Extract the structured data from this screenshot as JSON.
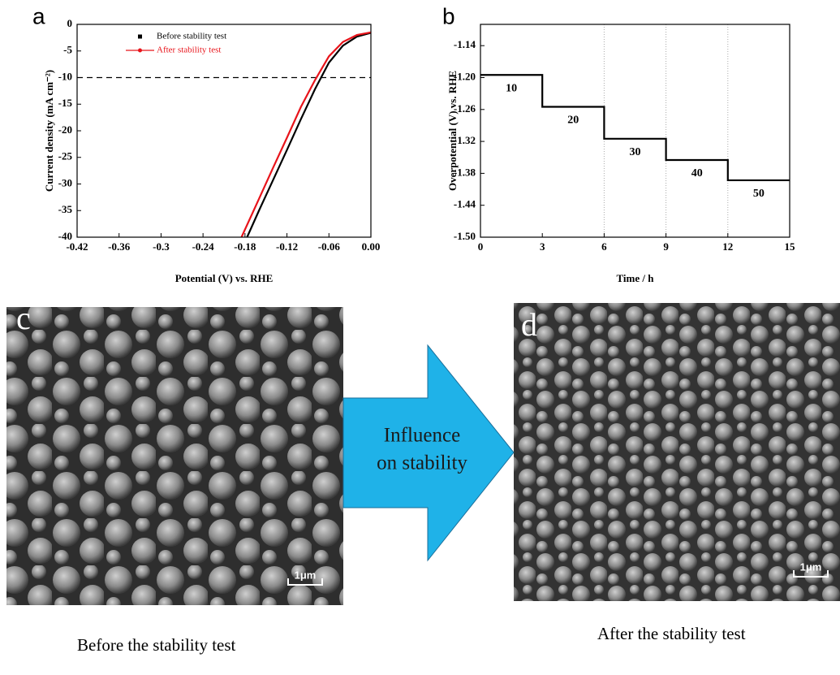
{
  "chart_data": [
    {
      "type": "line",
      "panel": "a",
      "xlabel": "Potential (V) vs. RHE",
      "ylabel": "Current density (mA cm⁻²)",
      "xlim": [
        -0.42,
        0
      ],
      "xticks": [
        -0.42,
        -0.36,
        -0.3,
        -0.24,
        -0.18,
        -0.12,
        -0.06,
        {
          "value": 0,
          "label": "0.00"
        }
      ],
      "ylim": [
        -40,
        0
      ],
      "yticks": [
        0,
        -5,
        -10,
        -15,
        -20,
        -25,
        -30,
        -35,
        -40
      ],
      "hline": -10,
      "legend": "upper left",
      "series": [
        {
          "name": "Before stability test",
          "color": "#000000",
          "x": [
            -0.177,
            -0.16,
            -0.14,
            -0.12,
            -0.1,
            -0.08,
            -0.06,
            -0.04,
            -0.02,
            0
          ],
          "values": [
            -40,
            -35,
            -29.3,
            -23.6,
            -17.8,
            -12.2,
            -7.2,
            -4,
            -2.3,
            -1.6
          ]
        },
        {
          "name": "After stability test",
          "color": "#e8141b",
          "x": [
            -0.185,
            -0.16,
            -0.14,
            -0.12,
            -0.1,
            -0.08,
            -0.06,
            -0.04,
            -0.02,
            0
          ],
          "values": [
            -40,
            -32.8,
            -27,
            -21.3,
            -15.5,
            -10.5,
            -6,
            -3.3,
            -2,
            -1.5
          ]
        }
      ]
    },
    {
      "type": "line",
      "panel": "b",
      "xlabel": "Time / h",
      "ylabel": "Overpotential (V) vs. RHE",
      "xlim": [
        0,
        15
      ],
      "xticks": [
        0,
        3,
        6,
        9,
        12,
        15
      ],
      "ylim": [
        -1.5,
        -1.1
      ],
      "yticks": [
        -1.14,
        {
          "value": -1.2,
          "label": "-1.20"
        },
        -1.26,
        -1.32,
        -1.38,
        -1.44,
        {
          "value": -1.5,
          "label": "-1.50"
        }
      ],
      "vlines": [
        6,
        9,
        12
      ],
      "color": "#000000",
      "x": [
        0,
        3,
        3,
        6,
        6,
        9,
        9,
        12,
        12,
        15
      ],
      "values": [
        -1.195,
        -1.195,
        -1.255,
        -1.255,
        -1.315,
        -1.315,
        -1.355,
        -1.355,
        -1.393,
        -1.393
      ],
      "step_labels": [
        "10",
        "20",
        "30",
        "40",
        "50"
      ]
    }
  ],
  "images": [
    {
      "label": "c",
      "scale_bar": "1μm",
      "caption": "Before the stability test"
    },
    {
      "label": "d",
      "scale_bar": "1μm",
      "caption": "After the stability test"
    }
  ],
  "arrow": {
    "lines": [
      "Influence",
      "on stability"
    ]
  }
}
